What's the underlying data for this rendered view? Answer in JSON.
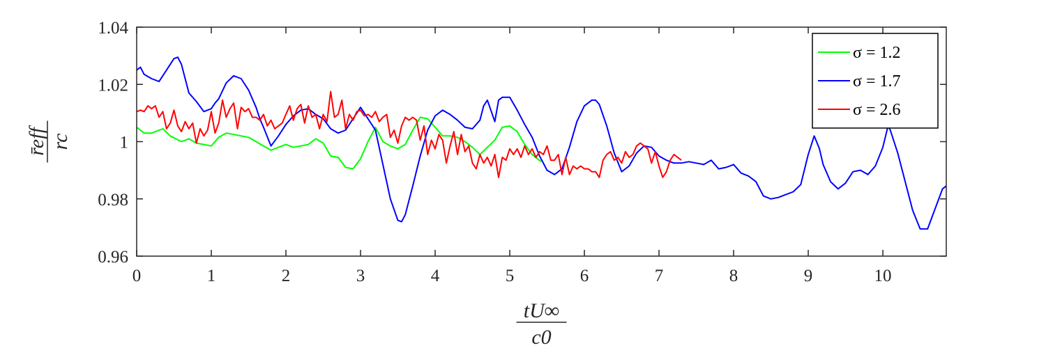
{
  "chart_data": {
    "type": "line",
    "title": "",
    "xlabel": {
      "numerator": "tU∞",
      "denominator": "c0"
    },
    "ylabel": {
      "numerator": "r̄eff",
      "denominator": "rc"
    },
    "xlim": [
      0,
      10.85
    ],
    "ylim": [
      0.96,
      1.04
    ],
    "xticks": [
      0,
      1,
      2,
      3,
      4,
      5,
      6,
      7,
      8,
      9,
      10
    ],
    "xtick_labels": [
      "0",
      "1",
      "2",
      "3",
      "4",
      "5",
      "6",
      "7",
      "8",
      "9",
      "10"
    ],
    "yticks": [
      0.96,
      0.98,
      1.0,
      1.02,
      1.04
    ],
    "ytick_labels": [
      "0.96",
      "0.98",
      "1",
      "1.02",
      "1.04"
    ],
    "grid": false,
    "legend_position": "top-right",
    "series": [
      {
        "name": "σ = 1.2",
        "color": "#00ff00",
        "x": [
          0,
          0.1,
          0.2,
          0.35,
          0.45,
          0.6,
          0.7,
          0.8,
          0.9,
          1.0,
          1.1,
          1.2,
          1.3,
          1.4,
          1.5,
          1.6,
          1.7,
          1.8,
          1.9,
          2.0,
          2.1,
          2.2,
          2.3,
          2.4,
          2.5,
          2.6,
          2.7,
          2.8,
          2.9,
          3.0,
          3.1,
          3.2,
          3.3,
          3.4,
          3.5,
          3.6,
          3.7,
          3.8,
          3.9,
          4.0,
          4.1,
          4.2,
          4.3,
          4.4,
          4.5,
          4.6,
          4.7,
          4.8,
          4.9,
          5.0,
          5.1,
          5.2,
          5.3,
          5.42
        ],
        "y": [
          1.005,
          1.003,
          1.003,
          1.0045,
          1.002,
          1.0,
          1.001,
          0.9995,
          0.999,
          0.9985,
          1.0015,
          1.003,
          1.0025,
          1.002,
          1.0015,
          1.0,
          0.9985,
          0.997,
          0.998,
          0.999,
          0.998,
          0.9985,
          0.999,
          1.001,
          0.9995,
          0.995,
          0.9945,
          0.991,
          0.9905,
          0.994,
          1.0,
          1.005,
          1.0,
          0.9985,
          0.9975,
          0.999,
          1.004,
          1.0085,
          1.008,
          1.005,
          1.002,
          1.002,
          1.0015,
          1.0,
          0.998,
          0.9955,
          0.998,
          1.0005,
          1.005,
          1.0055,
          1.0035,
          0.999,
          0.9955,
          0.993
        ]
      },
      {
        "name": "σ = 1.7",
        "color": "#0000ff",
        "x": [
          0,
          0.05,
          0.1,
          0.2,
          0.3,
          0.4,
          0.5,
          0.55,
          0.6,
          0.7,
          0.8,
          0.9,
          1.0,
          1.05,
          1.1,
          1.2,
          1.3,
          1.4,
          1.5,
          1.6,
          1.65,
          1.7,
          1.8,
          1.9,
          2.0,
          2.1,
          2.2,
          2.3,
          2.4,
          2.5,
          2.6,
          2.7,
          2.8,
          2.9,
          3.0,
          3.1,
          3.2,
          3.3,
          3.4,
          3.5,
          3.55,
          3.6,
          3.7,
          3.8,
          3.9,
          4.0,
          4.1,
          4.2,
          4.3,
          4.4,
          4.5,
          4.6,
          4.65,
          4.7,
          4.8,
          4.85,
          4.9,
          5.0,
          5.1,
          5.2,
          5.3,
          5.4,
          5.5,
          5.6,
          5.7,
          5.8,
          5.9,
          6.0,
          6.1,
          6.15,
          6.2,
          6.3,
          6.4,
          6.5,
          6.6,
          6.7,
          6.8,
          6.9,
          7.0,
          7.1,
          7.2,
          7.3,
          7.4,
          7.5,
          7.6,
          7.7,
          7.8,
          7.9,
          8.0,
          8.1,
          8.2,
          8.3,
          8.4,
          8.5,
          8.6,
          8.7,
          8.8,
          8.9,
          9.0,
          9.08,
          9.15,
          9.2,
          9.3,
          9.4,
          9.5,
          9.6,
          9.7,
          9.8,
          9.9,
          10.0,
          10.07,
          10.1,
          10.2,
          10.3,
          10.4,
          10.5,
          10.6,
          10.7,
          10.8,
          10.85
        ],
        "y": [
          1.025,
          1.026,
          1.0235,
          1.022,
          1.021,
          1.025,
          1.029,
          1.0295,
          1.027,
          1.017,
          1.014,
          1.0105,
          1.0115,
          1.0135,
          1.015,
          1.0205,
          1.023,
          1.022,
          1.018,
          1.012,
          1.008,
          1.005,
          0.9985,
          1.002,
          1.006,
          1.009,
          1.011,
          1.0115,
          1.0095,
          1.008,
          1.0045,
          1.003,
          1.004,
          1.008,
          1.012,
          1.008,
          1.004,
          0.992,
          0.98,
          0.9725,
          0.972,
          0.9745,
          0.9845,
          0.995,
          1.004,
          1.009,
          1.011,
          1.0095,
          1.0075,
          1.005,
          1.0045,
          1.0075,
          1.0125,
          1.0145,
          1.007,
          1.0145,
          1.0155,
          1.0155,
          1.011,
          1.006,
          1.0015,
          0.995,
          0.99,
          0.9885,
          0.9905,
          0.998,
          1.007,
          1.0125,
          1.0145,
          1.0145,
          1.013,
          1.0055,
          0.996,
          0.9895,
          0.9915,
          0.996,
          0.9985,
          0.998,
          0.995,
          0.9935,
          0.9925,
          0.9925,
          0.993,
          0.9925,
          0.992,
          0.9935,
          0.9905,
          0.991,
          0.992,
          0.989,
          0.988,
          0.986,
          0.981,
          0.98,
          0.9805,
          0.9815,
          0.9825,
          0.985,
          0.9955,
          1.002,
          0.9975,
          0.992,
          0.986,
          0.9835,
          0.9855,
          0.9895,
          0.99,
          0.9885,
          0.9915,
          0.998,
          1.0055,
          1.004,
          0.996,
          0.986,
          0.976,
          0.9695,
          0.9695,
          0.9765,
          0.9835,
          0.9845
        ]
      },
      {
        "name": "σ = 2.6",
        "color": "#ff0000",
        "x": [
          0,
          0.05,
          0.1,
          0.15,
          0.2,
          0.25,
          0.3,
          0.35,
          0.4,
          0.45,
          0.5,
          0.55,
          0.6,
          0.65,
          0.7,
          0.75,
          0.8,
          0.85,
          0.9,
          0.95,
          1.0,
          1.05,
          1.1,
          1.15,
          1.2,
          1.25,
          1.3,
          1.35,
          1.4,
          1.45,
          1.5,
          1.55,
          1.6,
          1.65,
          1.7,
          1.75,
          1.8,
          1.85,
          1.9,
          1.95,
          2.0,
          2.05,
          2.1,
          2.15,
          2.2,
          2.25,
          2.3,
          2.35,
          2.4,
          2.45,
          2.5,
          2.55,
          2.6,
          2.65,
          2.7,
          2.75,
          2.8,
          2.85,
          2.9,
          2.95,
          3.0,
          3.05,
          3.1,
          3.15,
          3.2,
          3.25,
          3.3,
          3.35,
          3.4,
          3.45,
          3.5,
          3.55,
          3.6,
          3.65,
          3.7,
          3.75,
          3.8,
          3.85,
          3.9,
          3.95,
          4.0,
          4.05,
          4.1,
          4.15,
          4.2,
          4.25,
          4.3,
          4.35,
          4.4,
          4.45,
          4.5,
          4.55,
          4.6,
          4.65,
          4.7,
          4.75,
          4.8,
          4.85,
          4.9,
          4.95,
          5.0,
          5.05,
          5.1,
          5.15,
          5.2,
          5.25,
          5.3,
          5.35,
          5.4,
          5.45,
          5.5,
          5.55,
          5.6,
          5.65,
          5.7,
          5.75,
          5.8,
          5.85,
          5.9,
          5.95,
          6.0,
          6.05,
          6.1,
          6.15,
          6.2,
          6.25,
          6.3,
          6.35,
          6.4,
          6.45,
          6.5,
          6.55,
          6.6,
          6.65,
          6.7,
          6.75,
          6.8,
          6.85,
          6.9,
          6.95,
          7.0,
          7.05,
          7.1,
          7.15,
          7.2,
          7.25,
          7.3
        ],
        "y": [
          1.0105,
          1.011,
          1.0105,
          1.0125,
          1.0115,
          1.0125,
          1.0085,
          1.0105,
          1.0045,
          1.0065,
          1.011,
          1.0055,
          1.0035,
          1.007,
          1.0045,
          1.0065,
          0.9995,
          1.0045,
          1.002,
          1.004,
          1.0105,
          1.003,
          1.0065,
          1.0145,
          1.0085,
          1.0115,
          1.0135,
          1.0045,
          1.012,
          1.0105,
          1.0115,
          1.0085,
          1.0085,
          1.0075,
          1.0095,
          1.0055,
          1.0075,
          1.0045,
          1.0055,
          1.0065,
          1.0095,
          1.0125,
          1.0075,
          1.0115,
          1.013,
          1.0065,
          1.0125,
          1.0085,
          1.0095,
          1.0045,
          1.0095,
          1.007,
          1.0175,
          1.0085,
          1.0095,
          1.0145,
          1.0045,
          1.0095,
          1.0075,
          1.0105,
          1.011,
          1.009,
          1.0095,
          1.0085,
          1.0105,
          1.007,
          1.0085,
          1.0095,
          1.0015,
          1.004,
          0.9995,
          1.0055,
          1.0085,
          1.0075,
          1.0085,
          1.0075,
          1.0005,
          1.0055,
          0.9955,
          1.0005,
          0.9975,
          1.0025,
          1.0005,
          0.9925,
          0.9985,
          1.0035,
          0.9955,
          1.0025,
          0.9965,
          0.9985,
          0.9925,
          0.9905,
          0.9955,
          0.9925,
          0.9945,
          0.9915,
          0.9955,
          0.9875,
          0.9945,
          0.9935,
          0.9975,
          0.9955,
          0.9975,
          0.9945,
          0.9985,
          0.9955,
          0.9975,
          0.9945,
          0.9965,
          0.9955,
          0.9985,
          0.9935,
          0.9935,
          0.9955,
          0.9885,
          0.9945,
          0.9885,
          0.9915,
          0.9905,
          0.9915,
          0.9905,
          0.9905,
          0.9895,
          0.9895,
          0.9875,
          0.9935,
          0.9955,
          0.9965,
          0.9935,
          0.9945,
          0.9925,
          0.9965,
          0.9945,
          0.9955,
          0.9985,
          0.9995,
          0.9985,
          0.9975,
          0.9925,
          0.9965,
          0.9915,
          0.9875,
          0.9895,
          0.9935,
          0.9955,
          0.9945,
          0.9935
        ]
      }
    ]
  }
}
